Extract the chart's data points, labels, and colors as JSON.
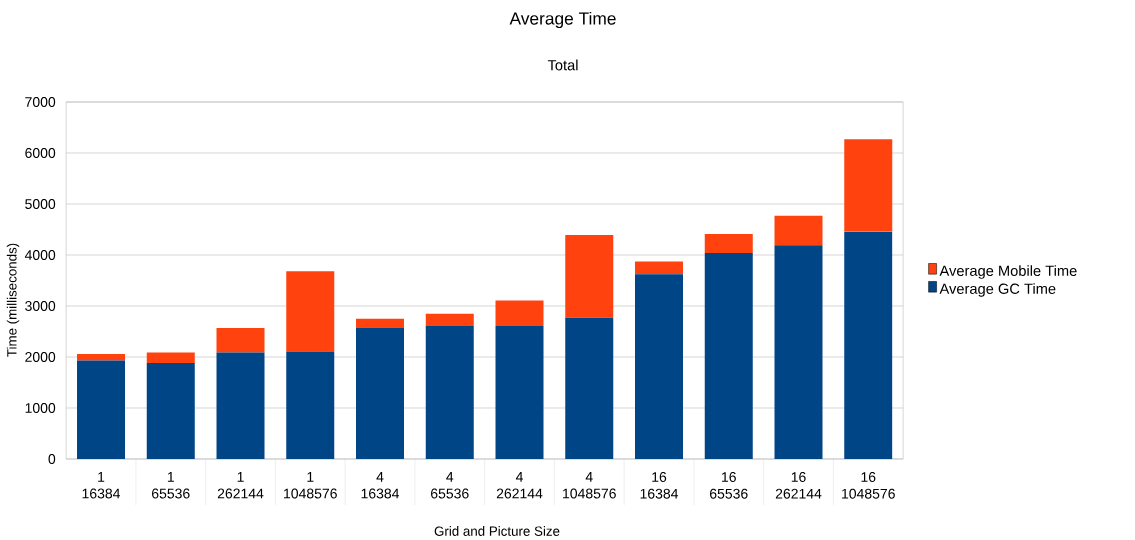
{
  "chart_data": {
    "type": "bar",
    "stacked": true,
    "title": "Average Time",
    "subtitle": "Total",
    "xlabel": "Grid and Picture Size",
    "ylabel": "Time (milliseconds)",
    "categories": [
      "1 16384",
      "1 65536",
      "1 262144",
      "1 1048576",
      "4 16384",
      "4 65536",
      "4 262144",
      "4 1048576",
      "16 16384",
      "16 65536",
      "16 262144",
      "16 1048576"
    ],
    "series": [
      {
        "name": "Average GC Time",
        "color": "#004586",
        "values": [
          1930,
          1880,
          2090,
          2110,
          2580,
          2610,
          2610,
          2770,
          3620,
          4040,
          4190,
          4460
        ]
      },
      {
        "name": "Average Mobile Time",
        "color": "#ff420e",
        "values": [
          130,
          210,
          480,
          1570,
          170,
          240,
          500,
          1620,
          250,
          370,
          580,
          1810
        ]
      }
    ],
    "ylim": [
      0,
      7000
    ],
    "yticks": [
      0,
      1000,
      2000,
      3000,
      4000,
      5000,
      6000,
      7000
    ],
    "grid": "y",
    "legend": "right"
  }
}
